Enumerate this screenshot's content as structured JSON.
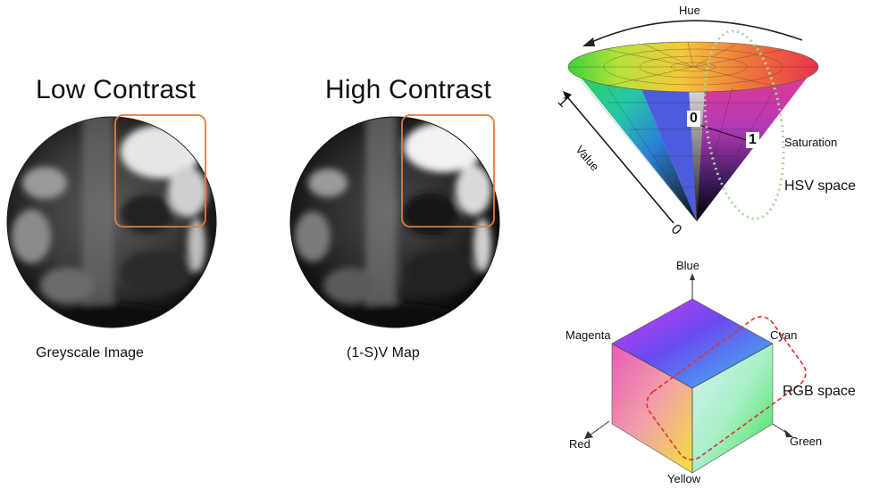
{
  "left_panel": {
    "title": "Low Contrast",
    "caption": "Greyscale Image"
  },
  "middle_panel": {
    "title": "High Contrast",
    "caption": "(1-S)V Map"
  },
  "hsv_diagram": {
    "hue_label": "Hue",
    "value_label": "Value",
    "saturation_label": "Saturation",
    "value_one": "1",
    "value_zero": "0",
    "sat_zero": "0",
    "sat_one": "1",
    "space_label": "HSV space"
  },
  "rgb_diagram": {
    "blue": "Blue",
    "magenta": "Magenta",
    "cyan": "Cyan",
    "red": "Red",
    "green": "Green",
    "yellow": "Yellow",
    "space_label": "RGB space"
  },
  "colors": {
    "highlight_box": "#e07a3c",
    "hsv_highlight": "#a8d99a",
    "rgb_highlight": "#e0302a"
  }
}
